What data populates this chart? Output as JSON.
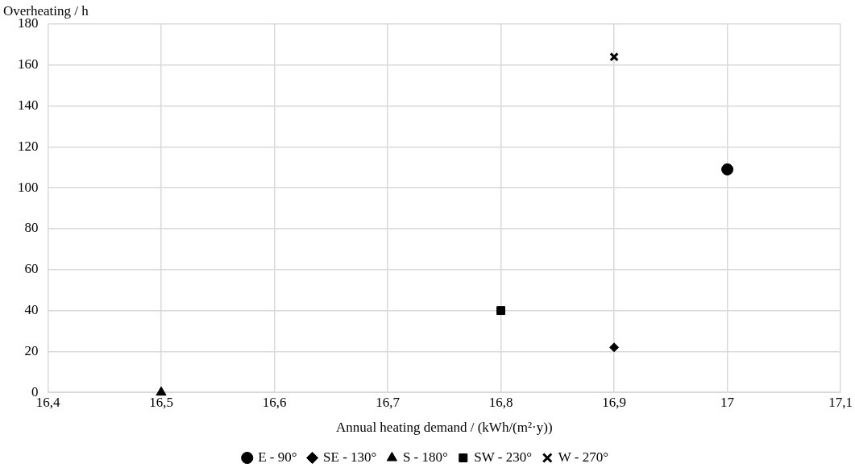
{
  "chart_data": {
    "type": "scatter",
    "xlabel": "Annual heating demand / (kWh/(m²·y))",
    "ylabel": "Overheating / h",
    "xlim": [
      16.4,
      17.1
    ],
    "xticks": [
      {
        "value": 16.4,
        "label": "16,4"
      },
      {
        "value": 16.5,
        "label": "16,5"
      },
      {
        "value": 16.6,
        "label": "16,6"
      },
      {
        "value": 16.7,
        "label": "16,7"
      },
      {
        "value": 16.8,
        "label": "16,8"
      },
      {
        "value": 16.9,
        "label": "16,9"
      },
      17,
      {
        "value": 17.1,
        "label": "17,1"
      }
    ],
    "ylim": [
      0,
      180
    ],
    "yticks": [
      0,
      20,
      40,
      60,
      80,
      100,
      120,
      140,
      160,
      180
    ],
    "grid": true,
    "legend": "bottom",
    "series": [
      {
        "name": "E - 90°",
        "color": "#000000",
        "marker": "circle",
        "x": [
          17
        ],
        "values": [
          109
        ]
      },
      {
        "name": "SE - 130°",
        "color": "#000000",
        "marker": "diamond",
        "x": [
          16.9
        ],
        "values": [
          22
        ]
      },
      {
        "name": "S - 180°",
        "color": "#000000",
        "marker": "triangle",
        "x": [
          16.5
        ],
        "values": [
          0
        ]
      },
      {
        "name": "SW - 230°",
        "color": "#000000",
        "marker": "square",
        "x": [
          16.8
        ],
        "values": [
          40
        ]
      },
      {
        "name": "W - 270°",
        "color": "#000000",
        "marker": "cross",
        "x": [
          16.9
        ],
        "values": [
          164
        ]
      }
    ]
  }
}
